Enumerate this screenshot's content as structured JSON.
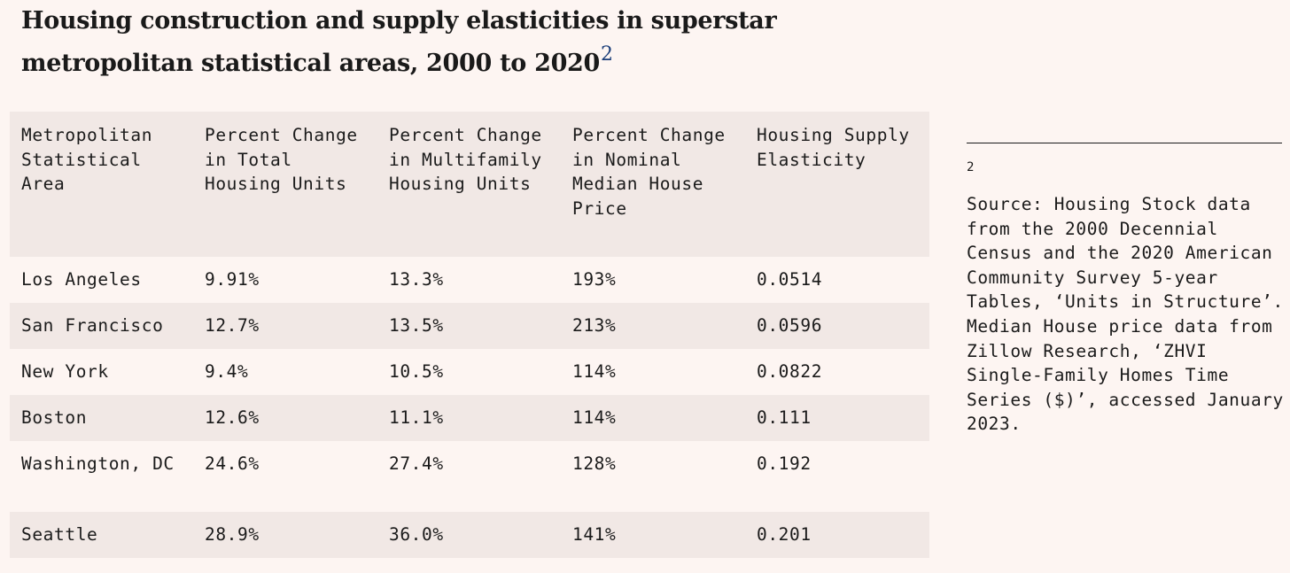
{
  "title": {
    "text": "Housing construction and supply elasticities in superstar metropolitan statistical areas, 2000 to 2020",
    "footnote_ref": "2"
  },
  "table": {
    "headers": [
      "Metropolitan Statistical Area",
      "Percent Change in Total Housing Units",
      "Percent Change in Multifamily Housing Units",
      "Percent Change in Nominal Median House Price",
      "Housing Supply Elasticity"
    ],
    "rows": [
      [
        "Los Angeles",
        "9.91%",
        "13.3%",
        "193%",
        "0.0514"
      ],
      [
        "San Francisco",
        "12.7%",
        "13.5%",
        "213%",
        "0.0596"
      ],
      [
        "New York",
        "9.4%",
        "10.5%",
        "114%",
        "0.0822"
      ],
      [
        "Boston",
        "12.6%",
        "11.1%",
        "114%",
        "0.111"
      ],
      [
        "Washington, DC",
        "24.6%",
        "27.4%",
        "128%",
        "0.192"
      ],
      [
        "Seattle",
        "28.9%",
        "36.0%",
        "141%",
        "0.201"
      ]
    ]
  },
  "footnote": {
    "number": "2",
    "text": "Source: Housing Stock data from the 2000 Decennial Census and the 2020 American Community Survey 5-year Tables, ‘Units in Structure’. Median House price data from Zillow Research, ‘ZHVI Single-Family Homes Time Series ($)’, accessed January 2023."
  },
  "colors": {
    "background": "#fdf5f2",
    "band": "#f1e8e5",
    "text": "#1a1a1a",
    "footnote_ref": "#1c3f7a"
  }
}
